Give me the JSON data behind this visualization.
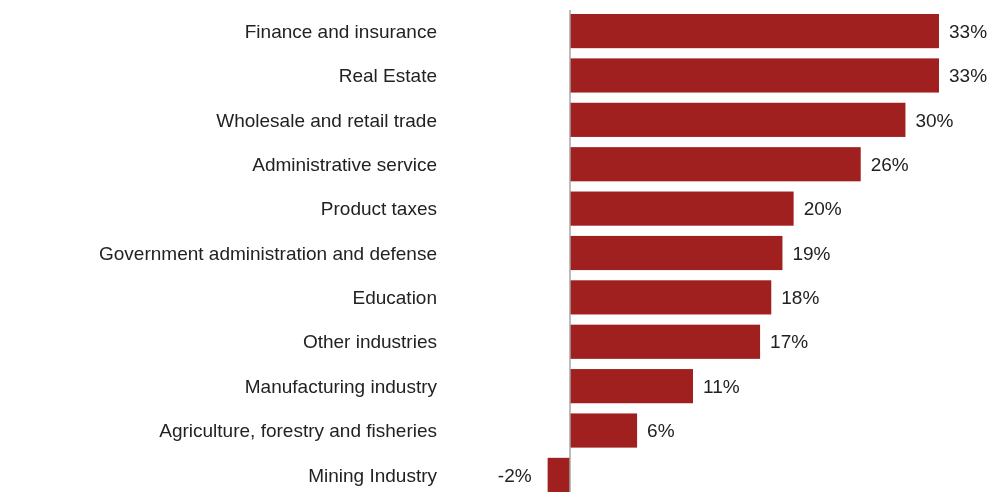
{
  "chart_data": {
    "type": "bar",
    "orientation": "horizontal",
    "categories": [
      "Finance and insurance",
      "Real Estate",
      "Wholesale and retail trade",
      "Administrative service",
      "Product taxes",
      "Government administration and defense",
      "Education",
      "Other industries",
      "Manufacturing industry",
      "Agriculture, forestry and fisheries",
      "Mining Industry"
    ],
    "values": [
      33,
      33,
      30,
      26,
      20,
      19,
      18,
      17,
      11,
      6,
      -2
    ],
    "value_labels": [
      "33%",
      "33%",
      "30%",
      "26%",
      "20%",
      "19%",
      "18%",
      "17%",
      "11%",
      "6%",
      "-2%"
    ],
    "color": "#a02020"
  }
}
